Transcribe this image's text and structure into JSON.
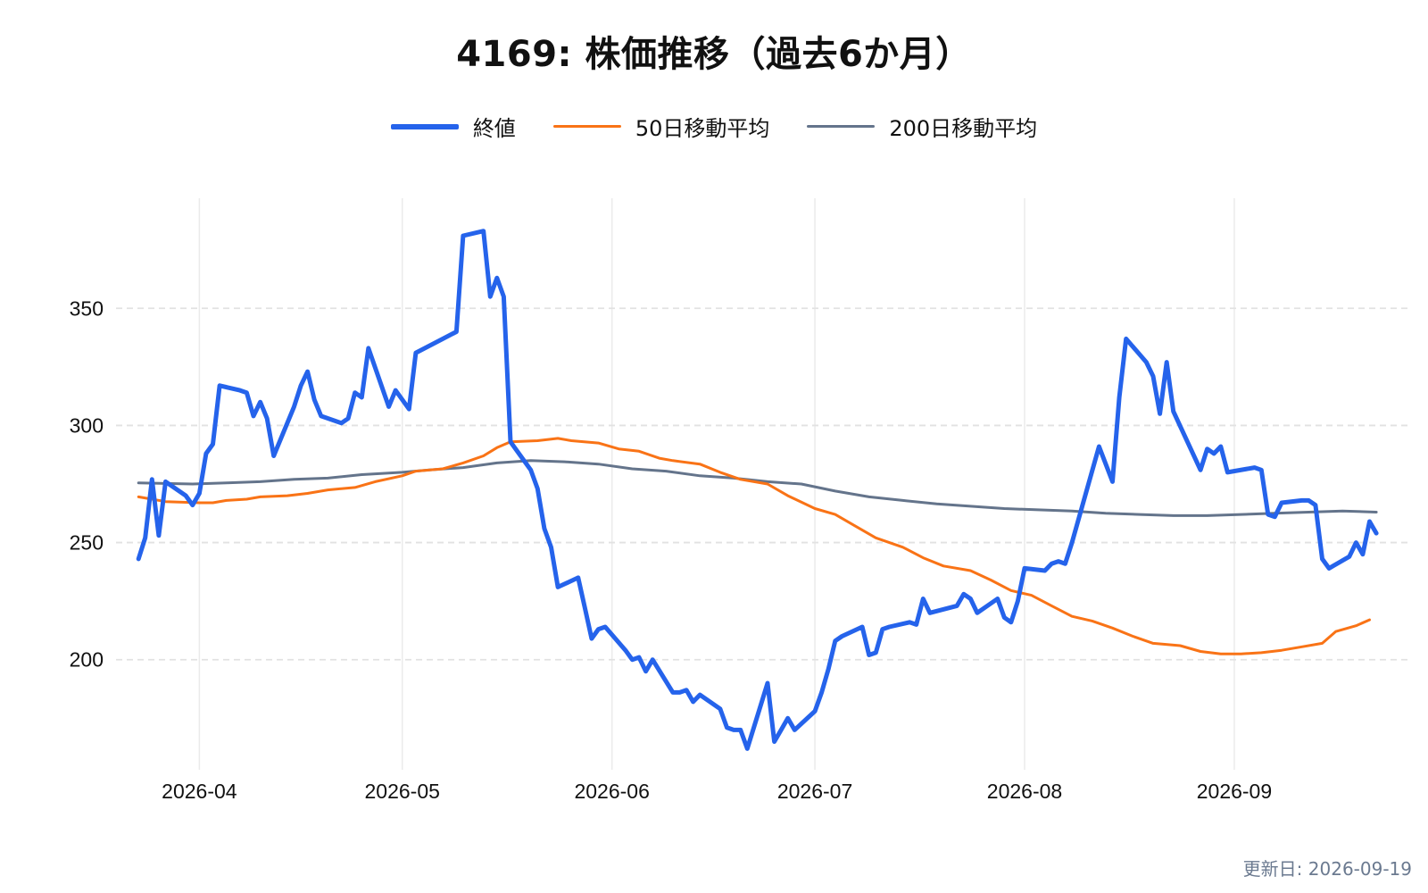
{
  "chart_data": {
    "type": "line",
    "title": "4169: 株価推移（過去6か月）",
    "xlabel": "",
    "ylabel": "",
    "x_tick_labels": [
      "2026-04",
      "2026-05",
      "2026-06",
      "2026-07",
      "2026-08",
      "2026-09"
    ],
    "y_tick_labels": [
      "200",
      "250",
      "300",
      "350"
    ],
    "y_ticks": [
      200,
      250,
      300,
      350
    ],
    "xlim": [
      "2026-03-21",
      "2026-09-27"
    ],
    "ylim": [
      153,
      397
    ],
    "grid": true,
    "legend_position": "top-center",
    "series": [
      {
        "name": "終値",
        "color": "#2563eb",
        "points": [
          [
            "2026-03-23",
            243
          ],
          [
            "2026-03-24",
            252
          ],
          [
            "2026-03-25",
            277
          ],
          [
            "2026-03-26",
            253
          ],
          [
            "2026-03-27",
            276
          ],
          [
            "2026-03-30",
            270
          ],
          [
            "2026-03-31",
            266
          ],
          [
            "2026-04-01",
            271
          ],
          [
            "2026-04-02",
            288
          ],
          [
            "2026-04-03",
            292
          ],
          [
            "2026-04-04",
            317
          ],
          [
            "2026-04-07",
            315
          ],
          [
            "2026-04-08",
            314
          ],
          [
            "2026-04-09",
            304
          ],
          [
            "2026-04-10",
            310
          ],
          [
            "2026-04-11",
            303
          ],
          [
            "2026-04-12",
            287
          ],
          [
            "2026-04-15",
            308
          ],
          [
            "2026-04-16",
            317
          ],
          [
            "2026-04-17",
            323
          ],
          [
            "2026-04-18",
            311
          ],
          [
            "2026-04-19",
            304
          ],
          [
            "2026-04-22",
            301
          ],
          [
            "2026-04-23",
            303
          ],
          [
            "2026-04-24",
            314
          ],
          [
            "2026-04-25",
            312
          ],
          [
            "2026-04-26",
            333
          ],
          [
            "2026-04-29",
            308
          ],
          [
            "2026-04-30",
            315
          ],
          [
            "2026-05-02",
            307
          ],
          [
            "2026-05-03",
            331
          ],
          [
            "2026-05-09",
            340
          ],
          [
            "2026-05-10",
            381
          ],
          [
            "2026-05-13",
            383
          ],
          [
            "2026-05-14",
            355
          ],
          [
            "2026-05-15",
            363
          ],
          [
            "2026-05-16",
            355
          ],
          [
            "2026-05-17",
            293
          ],
          [
            "2026-05-20",
            281
          ],
          [
            "2026-05-21",
            273
          ],
          [
            "2026-05-22",
            256
          ],
          [
            "2026-05-23",
            248
          ],
          [
            "2026-05-24",
            231
          ],
          [
            "2026-05-27",
            235
          ],
          [
            "2026-05-28",
            222
          ],
          [
            "2026-05-29",
            209
          ],
          [
            "2026-05-30",
            213
          ],
          [
            "2026-05-31",
            214
          ],
          [
            "2026-06-03",
            204
          ],
          [
            "2026-06-04",
            200
          ],
          [
            "2026-06-05",
            201
          ],
          [
            "2026-06-06",
            195
          ],
          [
            "2026-06-07",
            200
          ],
          [
            "2026-06-10",
            186
          ],
          [
            "2026-06-11",
            186
          ],
          [
            "2026-06-12",
            187
          ],
          [
            "2026-06-13",
            182
          ],
          [
            "2026-06-14",
            185
          ],
          [
            "2026-06-17",
            179
          ],
          [
            "2026-06-18",
            171
          ],
          [
            "2026-06-19",
            170
          ],
          [
            "2026-06-20",
            170
          ],
          [
            "2026-06-21",
            162
          ],
          [
            "2026-06-24",
            190
          ],
          [
            "2026-06-25",
            165
          ],
          [
            "2026-06-26",
            170
          ],
          [
            "2026-06-27",
            175
          ],
          [
            "2026-06-28",
            170
          ],
          [
            "2026-07-01",
            178
          ],
          [
            "2026-07-02",
            186
          ],
          [
            "2026-07-03",
            196
          ],
          [
            "2026-07-04",
            208
          ],
          [
            "2026-07-05",
            210
          ],
          [
            "2026-07-08",
            214
          ],
          [
            "2026-07-09",
            202
          ],
          [
            "2026-07-10",
            203
          ],
          [
            "2026-07-11",
            213
          ],
          [
            "2026-07-12",
            214
          ],
          [
            "2026-07-15",
            216
          ],
          [
            "2026-07-16",
            215
          ],
          [
            "2026-07-17",
            226
          ],
          [
            "2026-07-18",
            220
          ],
          [
            "2026-07-22",
            223
          ],
          [
            "2026-07-23",
            228
          ],
          [
            "2026-07-24",
            226
          ],
          [
            "2026-07-25",
            220
          ],
          [
            "2026-07-28",
            226
          ],
          [
            "2026-07-29",
            218
          ],
          [
            "2026-07-30",
            216
          ],
          [
            "2026-07-31",
            225
          ],
          [
            "2026-08-01",
            239
          ],
          [
            "2026-08-04",
            238
          ],
          [
            "2026-08-05",
            241
          ],
          [
            "2026-08-06",
            242
          ],
          [
            "2026-08-07",
            241
          ],
          [
            "2026-08-08",
            250
          ],
          [
            "2026-08-12",
            291
          ],
          [
            "2026-08-14",
            276
          ],
          [
            "2026-08-15",
            312
          ],
          [
            "2026-08-16",
            337
          ],
          [
            "2026-08-19",
            327
          ],
          [
            "2026-08-20",
            321
          ],
          [
            "2026-08-21",
            305
          ],
          [
            "2026-08-22",
            327
          ],
          [
            "2026-08-23",
            306
          ],
          [
            "2026-08-27",
            281
          ],
          [
            "2026-08-28",
            290
          ],
          [
            "2026-08-29",
            288
          ],
          [
            "2026-08-30",
            291
          ],
          [
            "2026-08-31",
            280
          ],
          [
            "2026-09-04",
            282
          ],
          [
            "2026-09-05",
            281
          ],
          [
            "2026-09-06",
            262
          ],
          [
            "2026-09-07",
            261
          ],
          [
            "2026-09-08",
            267
          ],
          [
            "2026-09-11",
            268
          ],
          [
            "2026-09-12",
            268
          ],
          [
            "2026-09-13",
            266
          ],
          [
            "2026-09-14",
            243
          ],
          [
            "2026-09-15",
            239
          ],
          [
            "2026-09-18",
            244
          ],
          [
            "2026-09-19",
            250
          ],
          [
            "2026-09-20",
            245
          ],
          [
            "2026-09-21",
            259
          ],
          [
            "2026-09-22",
            254
          ]
        ]
      },
      {
        "name": "50日移動平均",
        "color": "#f97316",
        "points": [
          [
            "2026-03-23",
            269.5
          ],
          [
            "2026-03-27",
            267.5
          ],
          [
            "2026-04-01",
            267
          ],
          [
            "2026-04-03",
            267
          ],
          [
            "2026-04-05",
            268
          ],
          [
            "2026-04-08",
            268.5
          ],
          [
            "2026-04-10",
            269.5
          ],
          [
            "2026-04-14",
            270
          ],
          [
            "2026-04-17",
            271
          ],
          [
            "2026-04-20",
            272.5
          ],
          [
            "2026-04-24",
            273.5
          ],
          [
            "2026-04-27",
            276
          ],
          [
            "2026-05-01",
            278.5
          ],
          [
            "2026-05-03",
            280.5
          ],
          [
            "2026-05-07",
            281.5
          ],
          [
            "2026-05-10",
            284
          ],
          [
            "2026-05-13",
            287
          ],
          [
            "2026-05-15",
            290.5
          ],
          [
            "2026-05-17",
            293
          ],
          [
            "2026-05-21",
            293.5
          ],
          [
            "2026-05-24",
            294.5
          ],
          [
            "2026-05-26",
            293.5
          ],
          [
            "2026-05-30",
            292.5
          ],
          [
            "2026-06-02",
            290
          ],
          [
            "2026-06-05",
            289
          ],
          [
            "2026-06-08",
            286
          ],
          [
            "2026-06-10",
            285
          ],
          [
            "2026-06-14",
            283.5
          ],
          [
            "2026-06-17",
            280
          ],
          [
            "2026-06-20",
            277
          ],
          [
            "2026-06-24",
            275
          ],
          [
            "2026-06-27",
            270
          ],
          [
            "2026-07-01",
            264.5
          ],
          [
            "2026-07-04",
            262
          ],
          [
            "2026-07-07",
            257
          ],
          [
            "2026-07-10",
            252
          ],
          [
            "2026-07-14",
            248
          ],
          [
            "2026-07-17",
            243.5
          ],
          [
            "2026-07-20",
            240
          ],
          [
            "2026-07-24",
            238
          ],
          [
            "2026-07-27",
            234
          ],
          [
            "2026-07-30",
            229.5
          ],
          [
            "2026-08-02",
            227.5
          ],
          [
            "2026-08-05",
            223
          ],
          [
            "2026-08-08",
            218.5
          ],
          [
            "2026-08-11",
            216.5
          ],
          [
            "2026-08-14",
            213.5
          ],
          [
            "2026-08-17",
            210
          ],
          [
            "2026-08-20",
            207
          ],
          [
            "2026-08-24",
            206
          ],
          [
            "2026-08-27",
            203.5
          ],
          [
            "2026-08-30",
            202.5
          ],
          [
            "2026-09-02",
            202.5
          ],
          [
            "2026-09-05",
            203
          ],
          [
            "2026-09-08",
            204
          ],
          [
            "2026-09-11",
            205.5
          ],
          [
            "2026-09-14",
            207
          ],
          [
            "2026-09-16",
            212
          ],
          [
            "2026-09-19",
            214.5
          ],
          [
            "2026-09-21",
            217
          ]
        ]
      },
      {
        "name": "200日移動平均",
        "color": "#64748b",
        "points": [
          [
            "2026-03-23",
            275.5
          ],
          [
            "2026-03-31",
            275
          ],
          [
            "2026-04-05",
            275.5
          ],
          [
            "2026-04-10",
            276
          ],
          [
            "2026-04-15",
            277
          ],
          [
            "2026-04-20",
            277.5
          ],
          [
            "2026-04-25",
            279
          ],
          [
            "2026-05-01",
            280
          ],
          [
            "2026-05-05",
            281
          ],
          [
            "2026-05-10",
            282
          ],
          [
            "2026-05-15",
            284
          ],
          [
            "2026-05-20",
            285
          ],
          [
            "2026-05-25",
            284.5
          ],
          [
            "2026-05-30",
            283.5
          ],
          [
            "2026-06-04",
            281.5
          ],
          [
            "2026-06-09",
            280.5
          ],
          [
            "2026-06-14",
            278.5
          ],
          [
            "2026-06-19",
            277.5
          ],
          [
            "2026-06-24",
            276
          ],
          [
            "2026-06-29",
            275
          ],
          [
            "2026-07-04",
            272
          ],
          [
            "2026-07-09",
            269.5
          ],
          [
            "2026-07-14",
            268
          ],
          [
            "2026-07-19",
            266.5
          ],
          [
            "2026-07-24",
            265.5
          ],
          [
            "2026-07-29",
            264.5
          ],
          [
            "2026-08-03",
            264
          ],
          [
            "2026-08-08",
            263.5
          ],
          [
            "2026-08-13",
            262.5
          ],
          [
            "2026-08-18",
            262
          ],
          [
            "2026-08-23",
            261.5
          ],
          [
            "2026-08-28",
            261.5
          ],
          [
            "2026-09-02",
            262
          ],
          [
            "2026-09-07",
            262.5
          ],
          [
            "2026-09-12",
            263
          ],
          [
            "2026-09-17",
            263.5
          ],
          [
            "2026-09-22",
            263
          ]
        ]
      }
    ]
  },
  "footer": {
    "updated_label": "更新日: 2026-09-19"
  }
}
